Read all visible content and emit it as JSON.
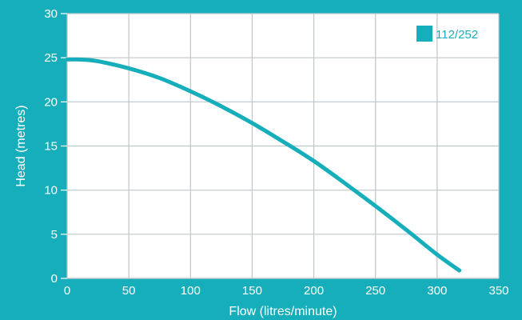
{
  "chart_data": {
    "type": "line",
    "xlabel": "Flow (litres/minute)",
    "ylabel": "Head (metres)",
    "xlim": [
      0,
      350
    ],
    "ylim": [
      0,
      30
    ],
    "xticks": [
      0,
      50,
      100,
      150,
      200,
      250,
      300,
      350
    ],
    "yticks": [
      0,
      5,
      10,
      15,
      20,
      25,
      30
    ],
    "grid": true,
    "legend_position": "top-right",
    "series": [
      {
        "name": "112/252",
        "color": "#16AEBA",
        "x": [
          0,
          10,
          25,
          50,
          75,
          100,
          125,
          150,
          175,
          200,
          225,
          250,
          275,
          300,
          318
        ],
        "y": [
          24.8,
          24.8,
          24.6,
          23.8,
          22.7,
          21.2,
          19.5,
          17.6,
          15.5,
          13.3,
          10.8,
          8.2,
          5.5,
          2.7,
          0.9
        ]
      }
    ]
  }
}
